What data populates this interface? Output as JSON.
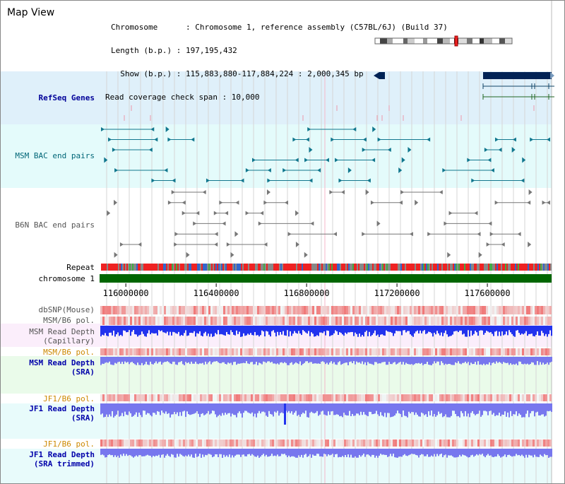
{
  "page": {
    "title": "Map View"
  },
  "info": {
    "chromosome_line": "Chromosome      : Chromosome 1, reference assembly (C57BL/6J) (Build 37)",
    "length_line": "Length (b.p.) : 197,195,432",
    "show_line": "  Show (b.p.) : 115,883,880-117,884,224 : 2,000,345 bp",
    "coverage_line": "Read coverage check span : 10,000"
  },
  "axis": {
    "ticks": [
      "116000000",
      "116400000",
      "116800000",
      "117200000",
      "117600000"
    ],
    "range": [
      115883880,
      117884224
    ]
  },
  "tracks": [
    {
      "key": "refseq",
      "label": "RefSeq Genes",
      "color": "#000099"
    },
    {
      "key": "msm_bac",
      "label": "MSM BAC end pairs",
      "color": "#006677"
    },
    {
      "key": "b6n_bac",
      "label": "B6N BAC end pairs",
      "color": "#555555"
    },
    {
      "key": "repeat",
      "label": "Repeat",
      "color": "#000000"
    },
    {
      "key": "chromosome",
      "label": "chromosome 1",
      "color": "#000000"
    },
    {
      "key": "dbsnp",
      "label": "dbSNP(Mouse)",
      "color": "#555555"
    },
    {
      "key": "msm_b6_pol",
      "label": "MSM/B6 pol.",
      "color": "#555555"
    },
    {
      "key": "msm_depth_cap",
      "label": "MSM Read Depth\n(Capillary)",
      "color": "#555555"
    },
    {
      "key": "msm_b6_pol_sra",
      "label": "MSM/B6 pol.",
      "color": "#cc8800"
    },
    {
      "key": "msm_depth_sra",
      "label": "MSM Read Depth\n(SRA)",
      "color": "#0000aa"
    },
    {
      "key": "jf1_b6_pol",
      "label": "JF1/B6 pol.",
      "color": "#cc8800"
    },
    {
      "key": "jf1_depth_sra",
      "label": "JF1 Read Depth\n(SRA)",
      "color": "#0000aa"
    },
    {
      "key": "jf1_b6_pol_trim",
      "label": "JF1/B6 pol.",
      "color": "#cc8800"
    },
    {
      "key": "jf1_depth_trim",
      "label": "JF1 Read Depth\n(SRA trimmed)",
      "color": "#0000aa"
    }
  ],
  "colors": {
    "refseq_bg": "#dff0fa",
    "msm_bg": "#e4fbfb",
    "b6n_bg": "#ffffff",
    "chromosome_bar": "#006600",
    "gene_dark": "#002255",
    "msm_feature": "#007799",
    "b6n_feature": "#777777",
    "snp_red": "#ee3333",
    "depth_blue": "#2233ee",
    "depth_light": "#7777ee"
  }
}
